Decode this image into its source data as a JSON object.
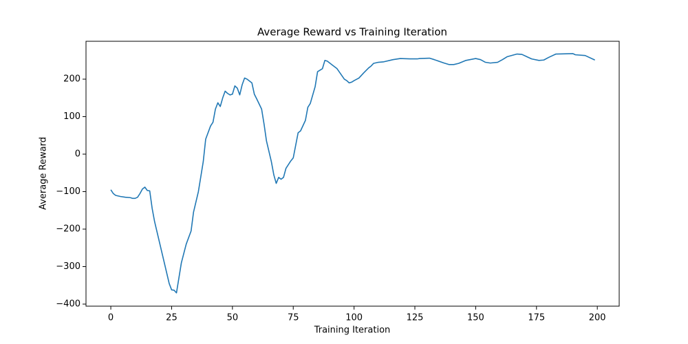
{
  "chart_data": {
    "type": "line",
    "title": "Average Reward vs Training Iteration",
    "x_label": "Training Iteration",
    "y_label": "Average Reward",
    "color": "#1f77b4",
    "x": [
      0,
      1,
      2,
      4,
      6,
      8,
      9,
      10,
      11,
      12,
      13,
      14,
      15,
      16,
      17,
      18,
      20,
      22,
      24,
      25,
      26,
      27,
      28,
      29,
      31,
      33,
      34,
      36,
      38,
      39,
      41,
      42,
      43,
      44,
      45,
      46,
      47,
      48,
      49,
      50,
      51,
      52,
      53,
      54,
      55,
      56,
      57,
      58,
      59,
      60,
      62,
      63,
      64,
      66,
      67,
      68,
      69,
      70,
      71,
      72,
      74,
      75,
      77,
      78,
      80,
      81,
      82,
      84,
      85,
      87,
      88,
      89,
      91,
      93,
      96,
      97,
      98,
      99,
      100,
      102,
      104,
      106,
      107,
      108,
      110,
      112,
      116,
      119,
      123,
      126,
      127,
      131,
      133,
      137,
      139,
      141,
      143,
      146,
      150,
      152,
      154,
      156,
      159,
      161,
      163,
      167,
      169,
      171,
      173,
      176,
      178,
      180,
      183,
      190,
      191,
      195,
      199
    ],
    "values": [
      -95,
      -105,
      -110,
      -113,
      -115,
      -116,
      -118,
      -118,
      -115,
      -105,
      -93,
      -88,
      -97,
      -98,
      -145,
      -180,
      -235,
      -290,
      -345,
      -362,
      -363,
      -370,
      -330,
      -290,
      -240,
      -205,
      -155,
      -100,
      -20,
      40,
      75,
      85,
      120,
      137,
      127,
      150,
      168,
      162,
      158,
      160,
      182,
      176,
      158,
      185,
      203,
      200,
      195,
      190,
      160,
      147,
      120,
      80,
      35,
      -20,
      -55,
      -78,
      -62,
      -67,
      -62,
      -38,
      -18,
      -10,
      57,
      62,
      90,
      125,
      135,
      180,
      220,
      228,
      250,
      248,
      238,
      228,
      200,
      196,
      190,
      192,
      196,
      203,
      217,
      230,
      235,
      242,
      245,
      246,
      252,
      255,
      254,
      254,
      255,
      256,
      252,
      243,
      239,
      239,
      242,
      250,
      255,
      252,
      245,
      243,
      245,
      252,
      260,
      267,
      266,
      260,
      254,
      250,
      251,
      258,
      267,
      268,
      265,
      263,
      251
    ],
    "xlim": [
      -10.2,
      209
    ],
    "ylim": [
      -405.5,
      301
    ],
    "xticks": [
      0,
      25,
      50,
      75,
      100,
      125,
      150,
      175,
      200
    ],
    "yticks": [
      {
        "value": -400,
        "label": "−400"
      },
      {
        "value": -300,
        "label": "−300"
      },
      {
        "value": -200,
        "label": "−200"
      },
      {
        "value": -100,
        "label": "−100"
      },
      0,
      100,
      200
    ]
  }
}
